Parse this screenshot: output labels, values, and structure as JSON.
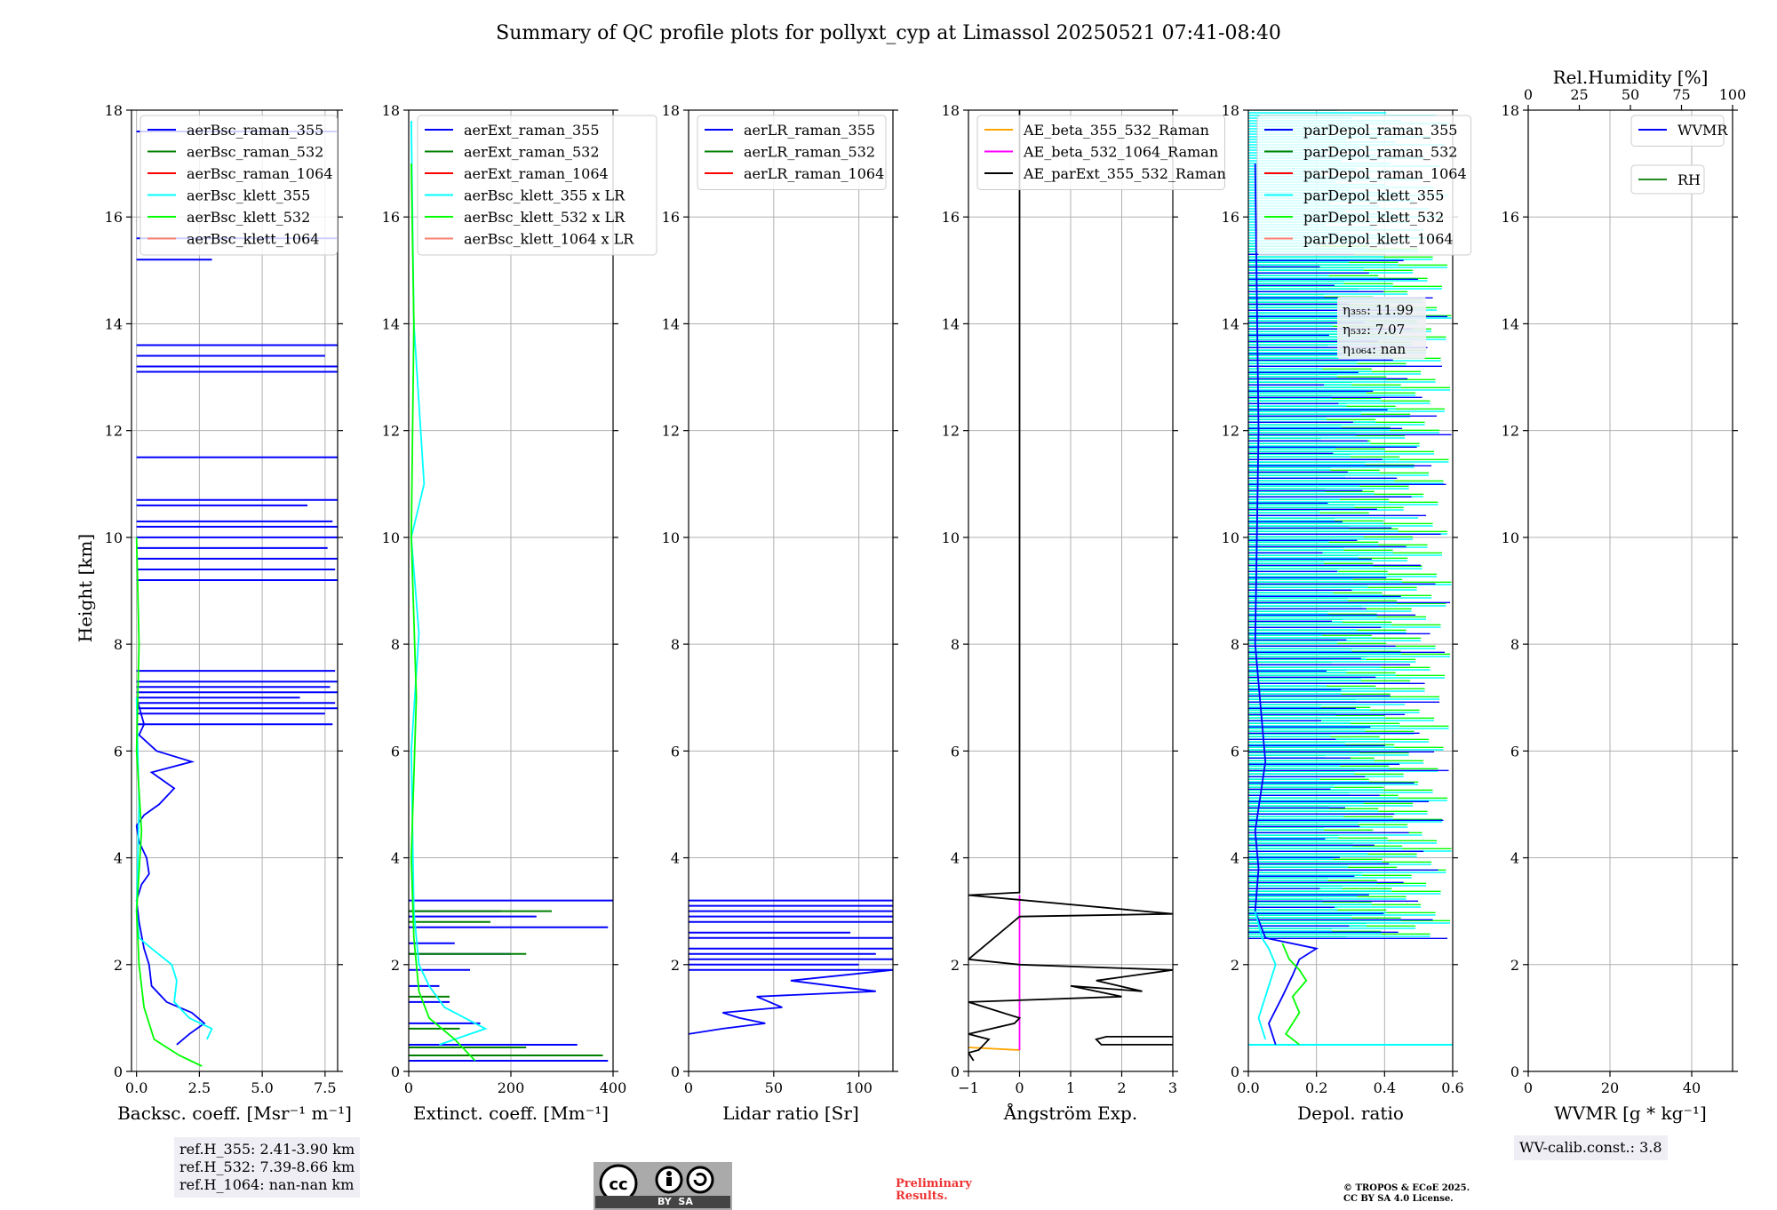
{
  "title": "Summary of QC profile plots for pollyxt_cyp at Limassol 20250521 07:41-08:40",
  "ylabel": "Height [km]",
  "colors": {
    "blue": "#0000ff",
    "green": "#008000",
    "red": "#ff0000",
    "cyan": "#00ffff",
    "lime": "#00ff00",
    "salmon": "#fa8072",
    "orange": "#ffa500",
    "magenta": "#ff00ff",
    "black": "#000000",
    "wvmr": "#0000ff",
    "rh": "#228b22"
  },
  "chart_data": [
    {
      "type": "line",
      "xlabel": "Backsc. coeff. [Msr⁻¹ m⁻¹]",
      "xlim": [
        -0.2,
        8.0
      ],
      "ylim": [
        0,
        18
      ],
      "xticks": [
        "0.0",
        "2.5",
        "5.0",
        "7.5"
      ],
      "yticks": [
        "0",
        "2",
        "4",
        "6",
        "8",
        "10",
        "12",
        "14",
        "16",
        "18"
      ],
      "legend": [
        "aerBsc_raman_355",
        "aerBsc_raman_532",
        "aerBsc_raman_1064",
        "aerBsc_klett_355",
        "aerBsc_klett_532",
        "aerBsc_klett_1064"
      ],
      "legend_colors": [
        "blue",
        "green",
        "red",
        "cyan",
        "lime",
        "salmon"
      ],
      "series": [
        {
          "color": "blue",
          "x": [
            1.6,
            2.1,
            2.7,
            2.2,
            1.2,
            0.6,
            0.5,
            0.3,
            0.1,
            0.0,
            0.2,
            0.5,
            0.4,
            0.1,
            0.0,
            0.3,
            0.9,
            1.5,
            0.6,
            2.2,
            0.8,
            0.1,
            0.3,
            0.0
          ],
          "y": [
            0.5,
            0.7,
            0.9,
            1.1,
            1.3,
            1.6,
            2.0,
            2.3,
            2.8,
            3.2,
            3.5,
            3.7,
            4.0,
            4.3,
            4.6,
            4.8,
            5.0,
            5.3,
            5.6,
            5.8,
            6.0,
            6.3,
            6.5,
            7.0
          ]
        },
        {
          "color": "cyan",
          "x": [
            2.8,
            3.0,
            2.1,
            1.5,
            1.6,
            1.4,
            0.6,
            0.1,
            0.0,
            0.1,
            0.0
          ],
          "y": [
            0.6,
            0.8,
            1.0,
            1.3,
            1.7,
            2.0,
            2.3,
            2.5,
            3.0,
            5.0,
            7.0
          ]
        },
        {
          "color": "lime",
          "x": [
            2.6,
            1.7,
            0.7,
            0.3,
            0.1,
            0.0,
            0.2,
            0.0,
            0.1,
            0.0
          ],
          "y": [
            0.1,
            0.3,
            0.6,
            1.2,
            2.0,
            3.0,
            4.5,
            6.0,
            8.0,
            10.0
          ]
        }
      ],
      "spikes": {
        "color": "blue",
        "heights": [
          6.5,
          6.7,
          6.8,
          6.9,
          7.0,
          7.1,
          7.2,
          7.3,
          7.5,
          9.2,
          9.4,
          9.6,
          9.8,
          10.0,
          10.2,
          10.3,
          10.6,
          10.7,
          11.5,
          13.1,
          13.2,
          13.4,
          13.6,
          15.2,
          15.6,
          17.6
        ],
        "values": [
          7.8,
          7.5,
          8.0,
          7.9,
          6.5,
          8.0,
          7.7,
          8.0,
          7.9,
          8.0,
          7.9,
          8.0,
          7.6,
          8.0,
          8.0,
          7.8,
          6.8,
          8.0,
          8.0,
          8.0,
          8.0,
          7.5,
          8.0,
          3.0,
          8.0,
          8.0
        ]
      },
      "info": [
        "ref.H_355: 2.41-3.90 km",
        "ref.H_532: 7.39-8.66 km",
        "ref.H_1064: nan-nan km"
      ]
    },
    {
      "type": "line",
      "xlabel": "Extinct. coeff. [Mm⁻¹]",
      "xlim": [
        0,
        400
      ],
      "ylim": [
        0,
        18
      ],
      "xticks": [
        "0",
        "200",
        "400"
      ],
      "yticks": [
        "0",
        "2",
        "4",
        "6",
        "8",
        "10",
        "12",
        "14",
        "16",
        "18"
      ],
      "legend": [
        "aerExt_raman_355",
        "aerExt_raman_532",
        "aerExt_raman_1064",
        "aerBsc_klett_355 x LR",
        "aerBsc_klett_532 x LR",
        "aerBsc_klett_1064 x LR"
      ],
      "legend_colors": [
        "blue",
        "green",
        "red",
        "cyan",
        "lime",
        "salmon"
      ],
      "series": [
        {
          "color": "cyan",
          "x": [
            60,
            150,
            70,
            40,
            20,
            10,
            5,
            20,
            5,
            30,
            10,
            5
          ],
          "y": [
            0.5,
            0.8,
            1.2,
            1.6,
            2.0,
            3.0,
            6.0,
            8.2,
            10.0,
            11.0,
            14.0,
            17.8
          ]
        },
        {
          "color": "lime",
          "x": [
            130,
            90,
            40,
            20,
            10,
            5,
            15,
            5,
            10,
            5
          ],
          "y": [
            0.2,
            0.6,
            1.0,
            1.5,
            2.5,
            4.0,
            7.0,
            10.0,
            14.0,
            17.0
          ]
        }
      ],
      "spikes": {
        "color": "blue",
        "heights": [
          0.2,
          0.5,
          0.9,
          1.3,
          1.6,
          1.9,
          2.2,
          2.4,
          2.7,
          2.9,
          3.0,
          3.2
        ],
        "values": [
          390,
          330,
          140,
          80,
          60,
          120,
          200,
          90,
          390,
          250,
          180,
          400
        ]
      },
      "spikes2": {
        "color": "green",
        "heights": [
          0.3,
          0.45,
          0.8,
          1.4,
          2.2,
          2.8,
          3.0
        ],
        "values": [
          380,
          230,
          100,
          80,
          230,
          160,
          280
        ]
      }
    },
    {
      "type": "line",
      "xlabel": "Lidar ratio [Sr]",
      "xlim": [
        0,
        120
      ],
      "ylim": [
        0,
        18
      ],
      "xticks": [
        "0",
        "50",
        "100"
      ],
      "yticks": [
        "0",
        "2",
        "4",
        "6",
        "8",
        "10",
        "12",
        "14",
        "16",
        "18"
      ],
      "legend": [
        "aerLR_raman_355",
        "aerLR_raman_532",
        "aerLR_raman_1064"
      ],
      "legend_colors": [
        "blue",
        "green",
        "red"
      ],
      "series": [
        {
          "color": "blue",
          "x": [
            0,
            20,
            45,
            30,
            20,
            55,
            40,
            110,
            60,
            120
          ],
          "y": [
            0.7,
            0.8,
            0.9,
            1.0,
            1.1,
            1.2,
            1.4,
            1.5,
            1.7,
            1.9
          ]
        }
      ],
      "spikes": {
        "color": "blue",
        "heights": [
          1.9,
          2.0,
          2.1,
          2.2,
          2.3,
          2.5,
          2.6,
          2.8,
          2.9,
          3.0,
          3.1,
          3.2
        ],
        "values": [
          120,
          100,
          120,
          110,
          120,
          120,
          95,
          120,
          120,
          120,
          120,
          120
        ]
      }
    },
    {
      "type": "line",
      "xlabel": "Ångström Exp.",
      "xlim": [
        -1,
        3
      ],
      "ylim": [
        0,
        18
      ],
      "xticks": [
        "−1",
        "0",
        "1",
        "2",
        "3"
      ],
      "yticks": [
        "0",
        "2",
        "4",
        "6",
        "8",
        "10",
        "12",
        "14",
        "16",
        "18"
      ],
      "legend": [
        "AE_beta_355_532_Raman",
        "AE_beta_532_1064_Raman",
        "AE_parExt_355_532_Raman"
      ],
      "legend_colors": [
        "orange",
        "magenta",
        "black"
      ],
      "series": [
        {
          "color": "orange",
          "x": [
            -1.0,
            0.0
          ],
          "y": [
            0.45,
            0.4
          ]
        },
        {
          "color": "magenta",
          "x": [
            0.0,
            0.0
          ],
          "y": [
            0.4,
            3.3
          ]
        },
        {
          "color": "black",
          "x": [
            -0.9,
            -1.0,
            -0.8,
            -0.6,
            -1.0,
            -0.1,
            0.0,
            -1.0,
            2.0,
            1.0,
            2.4,
            1.5,
            3.0,
            0.0,
            -1.0,
            0.0,
            3.0,
            -1.0,
            0.0,
            0.0
          ],
          "y": [
            0.2,
            0.35,
            0.4,
            0.6,
            0.7,
            0.9,
            1.0,
            1.3,
            1.4,
            1.6,
            1.5,
            1.7,
            1.9,
            2.0,
            2.1,
            2.9,
            2.95,
            3.3,
            3.35,
            18.0
          ]
        },
        {
          "color": "black",
          "x": [
            3.0,
            1.6,
            1.5,
            1.7,
            3.0
          ],
          "y": [
            0.5,
            0.5,
            0.6,
            0.65,
            0.65
          ]
        }
      ]
    },
    {
      "type": "line",
      "xlabel": "Depol. ratio",
      "xlim": [
        0,
        0.6
      ],
      "ylim": [
        0,
        18
      ],
      "xticks": [
        "0.0",
        "0.2",
        "0.4",
        "0.6"
      ],
      "yticks": [
        "0",
        "2",
        "4",
        "6",
        "8",
        "10",
        "12",
        "14",
        "16",
        "18"
      ],
      "legend": [
        "parDepol_raman_355",
        "parDepol_raman_532",
        "parDepol_raman_1064",
        "parDepol_klett_355",
        "parDepol_klett_532",
        "parDepol_klett_1064"
      ],
      "legend_colors": [
        "blue",
        "green",
        "red",
        "cyan",
        "lime",
        "salmon"
      ],
      "series": [
        {
          "color": "blue",
          "x": [
            0.08,
            0.06,
            0.1,
            0.13,
            0.15,
            0.2,
            0.05,
            0.02,
            0.03,
            0.02,
            0.05,
            0.02,
            0.03,
            0.02
          ],
          "y": [
            0.5,
            0.9,
            1.4,
            1.8,
            2.1,
            2.3,
            2.5,
            3.0,
            3.8,
            4.5,
            5.8,
            8.0,
            12.0,
            17.0
          ]
        },
        {
          "color": "cyan",
          "x": [
            0.05,
            0.03,
            0.06,
            0.08,
            0.06,
            0.04,
            0.02
          ],
          "y": [
            0.6,
            1.0,
            1.6,
            2.0,
            2.3,
            2.5,
            3.0
          ]
        },
        {
          "color": "lime",
          "x": [
            0.15,
            0.11,
            0.15,
            0.13,
            0.17,
            0.15,
            0.12,
            0.1
          ],
          "y": [
            0.5,
            0.7,
            1.1,
            1.4,
            1.7,
            1.9,
            2.1,
            2.4
          ]
        }
      ],
      "bands": [
        {
          "color": "lime",
          "from": 2.5,
          "to": 15.5,
          "extent": 0.6
        },
        {
          "color": "cyan",
          "from": 2.5,
          "to": 18.0,
          "extent": 0.6
        },
        {
          "color": "blue",
          "from": 2.4,
          "to": 15.3,
          "extent": 0.6
        }
      ],
      "cyan_floor": {
        "y": 0.5,
        "x": [
          0.0,
          0.6
        ]
      },
      "annotation": [
        "η₃₅₅: 11.99",
        "η₅₃₂: 7.07",
        "η₁₀₆₄: nan"
      ]
    },
    {
      "type": "line",
      "xlabel": "WVMR [g * kg⁻¹]",
      "xlim": [
        0,
        50
      ],
      "ylim": [
        0,
        18
      ],
      "xticks": [
        "0",
        "20",
        "40"
      ],
      "yticks": [
        "0",
        "2",
        "4",
        "6",
        "8",
        "10",
        "12",
        "14",
        "16",
        "18"
      ],
      "top_axis_label": "Rel.Humidity [%]",
      "top_xlim": [
        0,
        100
      ],
      "top_xticks": [
        "0",
        "25",
        "50",
        "75",
        "100"
      ],
      "legend": [
        "WVMR"
      ],
      "legend_colors": [
        "wvmr"
      ],
      "legend2": [
        "RH"
      ],
      "legend2_colors": [
        "rh"
      ],
      "info": [
        "WV-calib.const.: 3.8"
      ]
    }
  ],
  "footer": {
    "cc_label": "BY  SA",
    "preliminary": [
      "Preliminary",
      "Results."
    ],
    "copyright": [
      "© TROPOS & ECoE 2025.",
      "CC BY SA 4.0 License."
    ]
  }
}
